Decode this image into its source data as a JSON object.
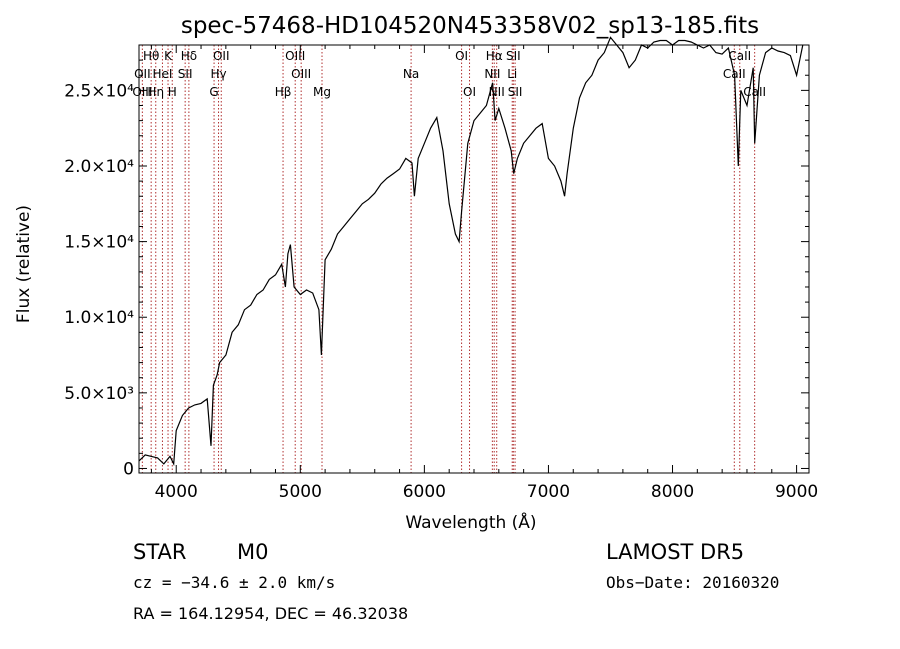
{
  "chart_data": {
    "type": "line",
    "title": "spec-57468-HD104520N453358V02_sp13-185.fits",
    "xlabel": "Wavelength (Å)",
    "ylabel": "Flux (relative)",
    "xlim": [
      3700,
      9100
    ],
    "ylim": [
      -300,
      28000
    ],
    "x_ticks": [
      4000,
      5000,
      6000,
      7000,
      8000,
      9000
    ],
    "y_ticks": [
      {
        "value": 0,
        "label": "0"
      },
      {
        "value": 5000,
        "label": "5.0×10³"
      },
      {
        "value": 10000,
        "label": "1.0×10⁴"
      },
      {
        "value": 15000,
        "label": "1.5×10⁴"
      },
      {
        "value": 20000,
        "label": "2.0×10⁴"
      },
      {
        "value": 25000,
        "label": "2.5×10⁴"
      }
    ],
    "series": [
      {
        "x": [
          3700,
          3750,
          3800,
          3850,
          3900,
          3950,
          3980,
          4000,
          4050,
          4100,
          4150,
          4200,
          4250,
          4280,
          4300,
          4330,
          4350,
          4400,
          4450,
          4500,
          4550,
          4600,
          4650,
          4700,
          4750,
          4800,
          4850,
          4880,
          4900,
          4920,
          4950,
          5000,
          5050,
          5100,
          5150,
          5170,
          5200,
          5250,
          5300,
          5350,
          5400,
          5450,
          5500,
          5550,
          5600,
          5650,
          5700,
          5750,
          5800,
          5850,
          5900,
          5920,
          5950,
          6000,
          6050,
          6100,
          6150,
          6200,
          6250,
          6280,
          6300,
          6350,
          6400,
          6450,
          6500,
          6550,
          6570,
          6600,
          6650,
          6700,
          6720,
          6750,
          6800,
          6850,
          6900,
          6950,
          7000,
          7050,
          7100,
          7130,
          7150,
          7200,
          7250,
          7300,
          7350,
          7400,
          7450,
          7500,
          7550,
          7600,
          7650,
          7700,
          7750,
          7800,
          7850,
          7900,
          7950,
          8000,
          8050,
          8100,
          8150,
          8200,
          8250,
          8300,
          8350,
          8400,
          8450,
          8500,
          8530,
          8550,
          8600,
          8650,
          8662,
          8700,
          8750,
          8800,
          8850,
          8900,
          8950,
          9000,
          9050
        ],
        "y": [
          500,
          900,
          800,
          700,
          300,
          800,
          300,
          2500,
          3500,
          4000,
          4200,
          4300,
          4600,
          1500,
          5500,
          6200,
          7000,
          7500,
          9000,
          9500,
          10500,
          10800,
          11500,
          11800,
          12500,
          12800,
          13500,
          12000,
          14200,
          14800,
          12000,
          11500,
          11800,
          11600,
          10500,
          7500,
          13800,
          14500,
          15500,
          16000,
          16500,
          17000,
          17500,
          17800,
          18200,
          18800,
          19200,
          19500,
          19800,
          20500,
          20200,
          18000,
          20500,
          21500,
          22500,
          23200,
          21000,
          17500,
          15500,
          15000,
          17000,
          21500,
          23000,
          23500,
          24000,
          25500,
          23000,
          23800,
          22500,
          21000,
          19500,
          20500,
          21500,
          22000,
          22500,
          22800,
          20500,
          20000,
          19000,
          18000,
          19500,
          22500,
          24500,
          25500,
          26000,
          27000,
          27500,
          28500,
          28000,
          27500,
          26500,
          27000,
          28000,
          27800,
          28200,
          28300,
          28300,
          28000,
          28300,
          28300,
          28200,
          28000,
          27800,
          28000,
          27500,
          27400,
          27800,
          26000,
          20000,
          25000,
          24000,
          26500,
          21500,
          26000,
          27500,
          27800,
          27600,
          27500,
          27300,
          26000,
          28000
        ]
      }
    ],
    "emission_lines": [
      {
        "label": "Hδ",
        "x": 4102,
        "row": 1
      },
      {
        "label": "K",
        "x": 3934,
        "row": 1
      },
      {
        "label": "Hθ",
        "x": 3798,
        "row": 1
      },
      {
        "label": "OII",
        "x": 4363,
        "row": 1
      },
      {
        "label": "OIII",
        "x": 4959,
        "row": 1
      },
      {
        "label": "OI",
        "x": 6300,
        "row": 1
      },
      {
        "label": "Hα",
        "x": 6563,
        "row": 1
      },
      {
        "label": "SII",
        "x": 6717,
        "row": 1
      },
      {
        "label": "CaII",
        "x": 8542,
        "row": 1
      },
      {
        "label": "OII",
        "x": 3727,
        "row": 2
      },
      {
        "label": "HeI",
        "x": 3889,
        "row": 2
      },
      {
        "label": "SII",
        "x": 4072,
        "row": 2
      },
      {
        "label": "Hγ",
        "x": 4341,
        "row": 2
      },
      {
        "label": "OIII",
        "x": 5007,
        "row": 2
      },
      {
        "label": "Na",
        "x": 5893,
        "row": 2
      },
      {
        "label": "NII",
        "x": 6548,
        "row": 2
      },
      {
        "label": "Li",
        "x": 6708,
        "row": 2
      },
      {
        "label": "CaII",
        "x": 8498,
        "row": 2
      },
      {
        "label": "OIII",
        "x": 3727,
        "row": 3
      },
      {
        "label": "Hη",
        "x": 3835,
        "row": 3
      },
      {
        "label": "H",
        "x": 3968,
        "row": 3
      },
      {
        "label": "G",
        "x": 4305,
        "row": 3
      },
      {
        "label": "Hβ",
        "x": 4861,
        "row": 3
      },
      {
        "label": "Mg",
        "x": 5175,
        "row": 3
      },
      {
        "label": "OI",
        "x": 6364,
        "row": 3
      },
      {
        "label": "NII",
        "x": 6583,
        "row": 3
      },
      {
        "label": "SII",
        "x": 6731,
        "row": 3
      },
      {
        "label": "CaII",
        "x": 8662,
        "row": 3
      }
    ],
    "grid": false,
    "colors": {
      "spectrum": "#000000",
      "lines": "#b03030",
      "axes": "#000000"
    }
  },
  "info": {
    "object_class": "STAR",
    "subclass": "M0",
    "survey": "LAMOST DR5",
    "cz": "cz = −34.6 ± 2.0 km/s",
    "obs_date": "Obs−Date: 20160320",
    "coords": "RA = 164.12954, DEC =  46.32038"
  }
}
